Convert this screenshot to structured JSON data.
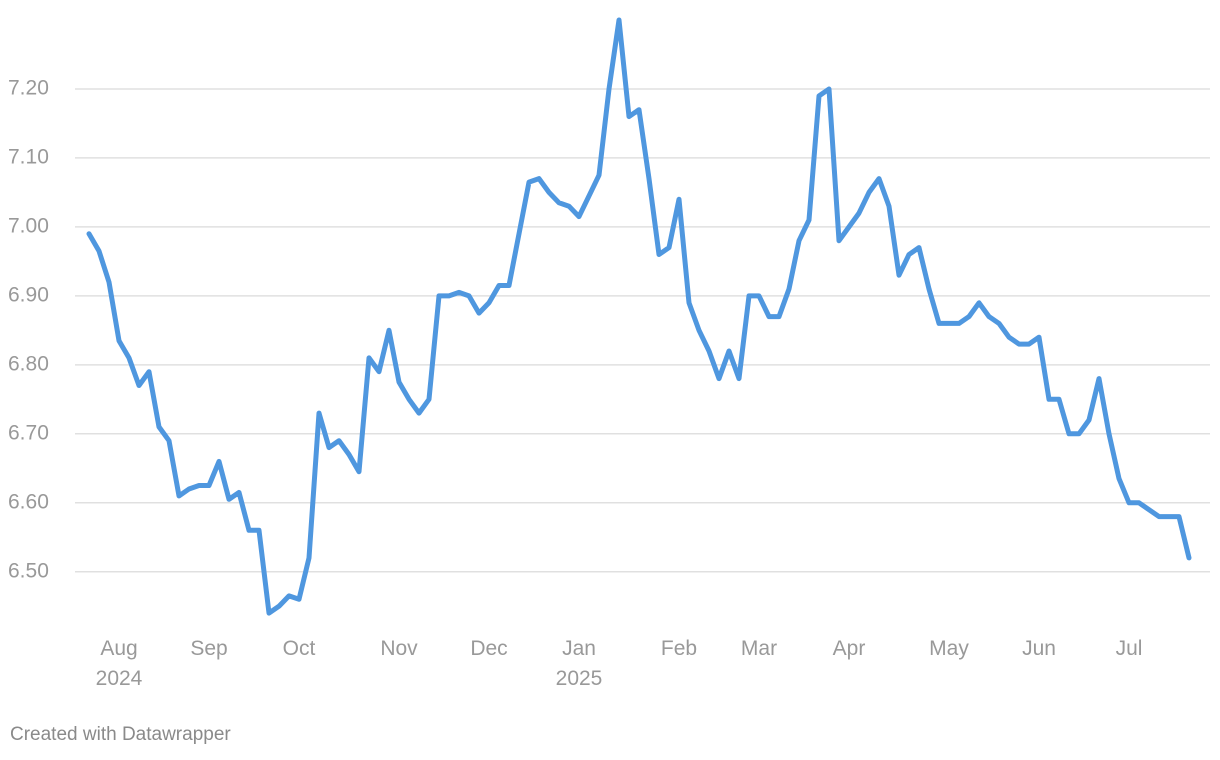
{
  "chart_data": {
    "type": "line",
    "categories": [
      null,
      null,
      null,
      "Aug\n2024",
      null,
      null,
      null,
      null,
      null,
      null,
      null,
      null,
      "Sep",
      null,
      null,
      null,
      null,
      null,
      null,
      null,
      null,
      "Oct",
      null,
      null,
      null,
      null,
      null,
      null,
      null,
      null,
      null,
      "Nov",
      null,
      null,
      null,
      null,
      null,
      null,
      null,
      null,
      "Dec",
      null,
      null,
      null,
      null,
      null,
      null,
      null,
      null,
      "Jan\n2025",
      null,
      null,
      null,
      null,
      null,
      null,
      null,
      null,
      null,
      "Feb",
      null,
      null,
      null,
      null,
      null,
      null,
      null,
      "Mar",
      null,
      null,
      null,
      null,
      null,
      null,
      null,
      null,
      "Apr",
      null,
      null,
      null,
      null,
      null,
      null,
      null,
      null,
      null,
      "May",
      null,
      null,
      null,
      null,
      null,
      null,
      null,
      null,
      "Jun",
      null,
      null,
      null,
      null,
      null,
      null,
      null,
      null,
      "Jul",
      null,
      null,
      null,
      null,
      null,
      null
    ],
    "series": [
      {
        "color": "#4f97df",
        "values": [
          6.99,
          6.965,
          6.92,
          6.835,
          6.81,
          6.77,
          6.79,
          6.71,
          6.69,
          6.61,
          6.62,
          6.625,
          6.625,
          6.66,
          6.605,
          6.615,
          6.56,
          6.56,
          6.44,
          6.45,
          6.465,
          6.46,
          6.52,
          6.73,
          6.68,
          6.69,
          6.67,
          6.645,
          6.81,
          6.79,
          6.85,
          6.775,
          6.75,
          6.73,
          6.75,
          6.9,
          6.9,
          6.905,
          6.9,
          6.875,
          6.89,
          6.915,
          6.915,
          6.99,
          7.065,
          7.07,
          7.05,
          7.035,
          7.03,
          7.015,
          7.045,
          7.075,
          7.2,
          7.3,
          7.16,
          7.17,
          7.07,
          6.96,
          6.97,
          7.04,
          6.89,
          6.85,
          6.82,
          6.78,
          6.82,
          6.78,
          6.9,
          6.9,
          6.87,
          6.87,
          6.91,
          6.98,
          7.01,
          7.19,
          7.2,
          6.98,
          7.0,
          7.02,
          7.05,
          7.07,
          7.03,
          6.93,
          6.96,
          6.97,
          6.91,
          6.86,
          6.86,
          6.86,
          6.87,
          6.89,
          6.87,
          6.86,
          6.84,
          6.83,
          6.83,
          6.84,
          6.75,
          6.75,
          6.7,
          6.7,
          6.72,
          6.78,
          6.7,
          6.635,
          6.6,
          6.6,
          6.59,
          6.58,
          6.58,
          6.58,
          6.52
        ]
      }
    ],
    "ylim": [
      6.43,
      7.3
    ],
    "yticks": [
      {
        "value": 6.5,
        "label": "6.50"
      },
      {
        "value": 6.6,
        "label": "6.60"
      },
      {
        "value": 6.7,
        "label": "6.70"
      },
      {
        "value": 6.8,
        "label": "6.80"
      },
      {
        "value": 6.9,
        "label": "6.90"
      },
      {
        "value": 7.0,
        "label": "7.00"
      },
      {
        "value": 7.1,
        "label": "7.10"
      },
      {
        "value": 7.2,
        "label": "7.20"
      }
    ],
    "grid": true,
    "footer": "Created with Datawrapper"
  }
}
